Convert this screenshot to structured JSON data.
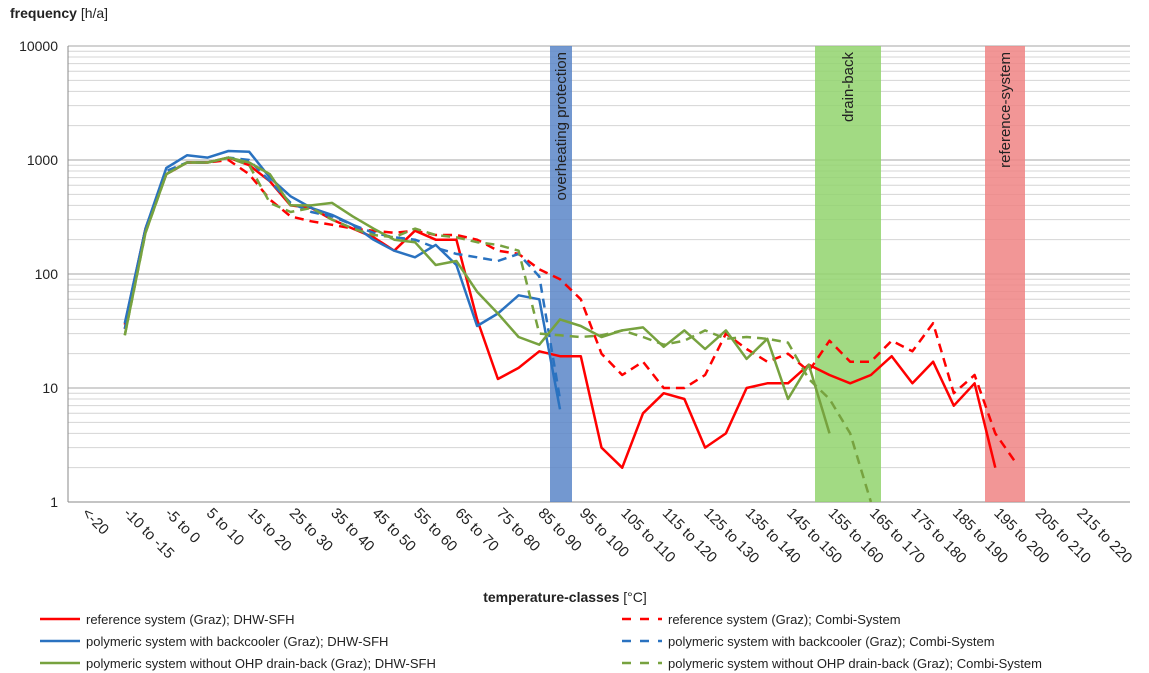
{
  "chart_data": {
    "type": "line",
    "ylabel": "frequency",
    "ylabel_unit": "[h/a]",
    "xlabel": "temperature-classes",
    "xlabel_unit": "[°C]",
    "log_y": true,
    "grid": true,
    "minor_grid": true,
    "ylim": [
      1,
      10000
    ],
    "yticks": [
      1,
      10,
      100,
      1000,
      10000
    ],
    "categories": [
      "<-20",
      null,
      "-10 to -15",
      null,
      "-5 to 0",
      null,
      "5 to 10",
      null,
      "15 to 20",
      null,
      "25 to 30",
      null,
      "35 to 40",
      null,
      "45 to 50",
      null,
      "55 to 60",
      null,
      "65 to 70",
      null,
      "75 to 80",
      null,
      "85 to 90",
      null,
      "95 to 100",
      null,
      "105 to 110",
      null,
      "115 to 120",
      null,
      "125 to 130",
      null,
      "135 to 140",
      null,
      "145 to 150",
      null,
      "155 to 160",
      null,
      "165 to 170",
      null,
      "175 to 180",
      null,
      "185 to 190",
      null,
      "195 to 200",
      null,
      "205 to 210",
      null,
      "215 to 220",
      null,
      null
    ],
    "series": [
      {
        "name": "reference system (Graz); DHW-SFH",
        "color": "#ff0000",
        "linestyle": "solid",
        "values": [
          null,
          null,
          36,
          250,
          750,
          950,
          950,
          1050,
          900,
          650,
          400,
          380,
          300,
          250,
          210,
          160,
          240,
          200,
          200,
          40,
          12,
          15,
          21,
          19,
          19,
          3,
          2,
          6,
          9,
          8,
          3,
          4,
          10,
          11,
          11,
          16,
          13,
          11,
          13,
          19,
          11,
          17,
          7,
          11,
          2,
          null,
          null,
          null,
          null,
          null,
          null
        ]
      },
      {
        "name": "reference system (Graz); Combi-System",
        "color": "#ff0000",
        "linestyle": "dashed",
        "values": [
          null,
          null,
          33,
          250,
          750,
          950,
          950,
          1000,
          750,
          450,
          320,
          290,
          270,
          250,
          240,
          230,
          240,
          220,
          220,
          200,
          160,
          150,
          110,
          90,
          60,
          20,
          13,
          17,
          10,
          10,
          13,
          30,
          22,
          17,
          20,
          14,
          26,
          17,
          17,
          26,
          21,
          37,
          9,
          13,
          4,
          2.2,
          null,
          null,
          null,
          null,
          null
        ]
      },
      {
        "name": "polymeric system with backcooler (Graz); DHW-SFH",
        "color": "#2a72c0",
        "linestyle": "solid",
        "values": [
          null,
          null,
          37,
          250,
          850,
          1100,
          1050,
          1200,
          1180,
          700,
          480,
          380,
          330,
          270,
          200,
          160,
          140,
          180,
          120,
          35,
          45,
          65,
          60,
          6.5,
          null,
          null,
          null,
          null,
          null,
          null,
          null,
          null,
          null,
          null,
          null,
          null,
          null,
          null,
          null,
          null,
          null,
          null,
          null,
          null,
          null,
          null,
          null,
          null,
          null,
          null,
          null
        ]
      },
      {
        "name": "polymeric system with backcooler (Graz); Combi-System",
        "color": "#2a72c0",
        "linestyle": "dashed",
        "values": [
          null,
          null,
          33,
          250,
          800,
          950,
          950,
          1050,
          1000,
          650,
          420,
          350,
          320,
          270,
          230,
          210,
          200,
          170,
          150,
          140,
          130,
          150,
          95,
          8,
          null,
          null,
          null,
          null,
          null,
          null,
          null,
          null,
          null,
          null,
          null,
          null,
          null,
          null,
          null,
          null,
          null,
          null,
          null,
          null,
          null,
          null,
          null,
          null,
          null,
          null,
          null
        ]
      },
      {
        "name": "polymeric system without OHP drain-back (Graz); DHW-SFH",
        "color": "#77a23f",
        "linestyle": "solid",
        "values": [
          null,
          null,
          29,
          230,
          750,
          950,
          950,
          1050,
          950,
          750,
          400,
          400,
          420,
          320,
          250,
          200,
          190,
          120,
          130,
          70,
          45,
          28,
          24,
          40,
          35,
          28,
          32,
          34,
          23,
          32,
          22,
          32,
          18,
          27,
          8,
          16,
          4,
          null,
          null,
          null,
          null,
          null,
          null,
          null,
          null,
          null,
          null,
          null,
          null,
          null,
          null
        ]
      },
      {
        "name": "polymeric system without OHP drain-back (Graz); Combi-System",
        "color": "#77a23f",
        "linestyle": "dashed",
        "values": [
          null,
          null,
          29,
          230,
          750,
          950,
          950,
          1050,
          900,
          420,
          350,
          380,
          300,
          250,
          220,
          210,
          250,
          220,
          210,
          190,
          180,
          160,
          30,
          29,
          28,
          29,
          32,
          28,
          24,
          26,
          32,
          27,
          28,
          27,
          25,
          12,
          8,
          4,
          1,
          null,
          null,
          null,
          null,
          null,
          null,
          null,
          null,
          null,
          null,
          null,
          null
        ]
      }
    ],
    "annotations": [
      {
        "text": "overheating protection",
        "color": "#5b86c8"
      },
      {
        "text": "drain-back",
        "color": "#92d36d"
      },
      {
        "text": "reference-system",
        "color": "#f08484"
      }
    ]
  }
}
